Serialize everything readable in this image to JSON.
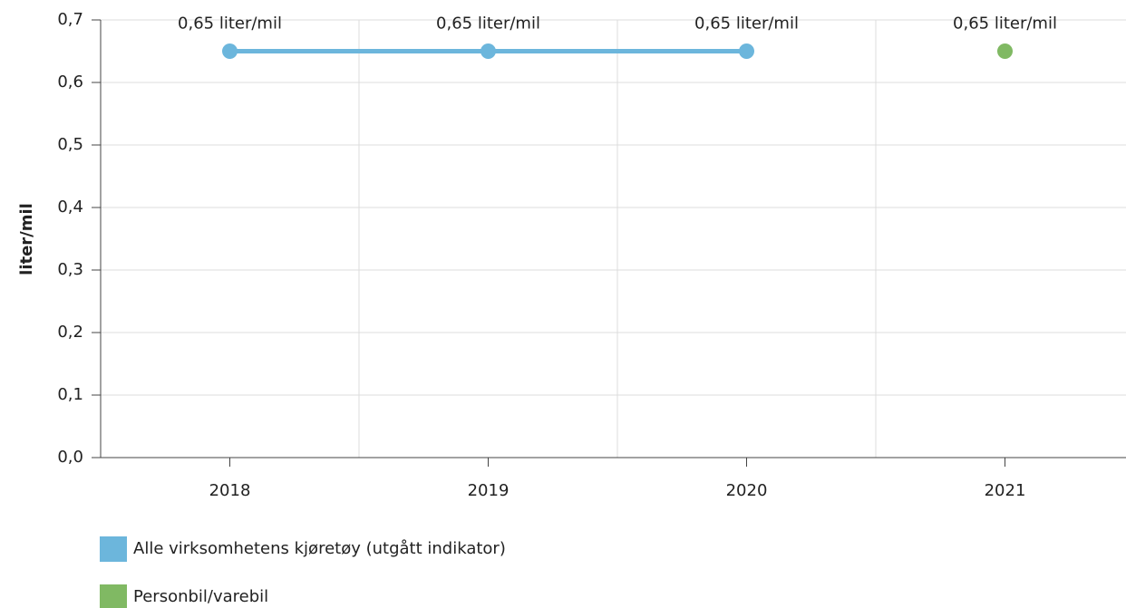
{
  "chart_data": {
    "type": "line",
    "y_label": "liter/mil",
    "categories": [
      "2018",
      "2019",
      "2020",
      "2021"
    ],
    "series": [
      {
        "name": "Alle virksomhetens kjøretøy (utgått indikator)",
        "color": "#6cb6dc",
        "values": [
          0.65,
          0.65,
          0.65,
          null
        ],
        "value_labels": [
          "0,65 liter/mil",
          "0,65 liter/mil",
          "0,65 liter/mil",
          null
        ]
      },
      {
        "name": "Personbil/varebil",
        "color": "#80b963",
        "values": [
          null,
          null,
          null,
          0.65
        ],
        "value_labels": [
          null,
          null,
          null,
          "0,65 liter/mil"
        ]
      }
    ],
    "ylim": [
      0,
      0.7
    ],
    "yticks": [
      {
        "value": 0,
        "label": "0,0"
      },
      {
        "value": 0.1,
        "label": "0,1"
      },
      {
        "value": 0.2,
        "label": "0,2"
      },
      {
        "value": 0.3,
        "label": "0,3"
      },
      {
        "value": 0.4,
        "label": "0,4"
      },
      {
        "value": 0.5,
        "label": "0,5"
      },
      {
        "value": 0.6,
        "label": "0,6"
      },
      {
        "value": 0.7,
        "label": "0,7"
      }
    ],
    "grid": true
  }
}
